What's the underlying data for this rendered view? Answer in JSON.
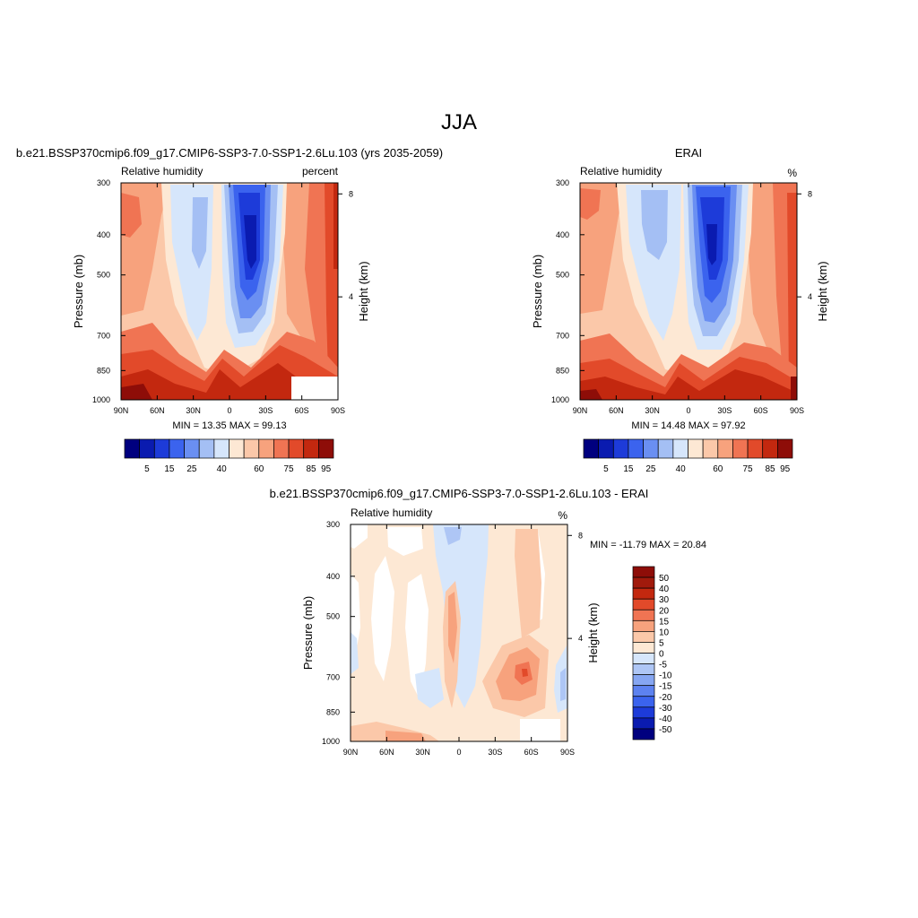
{
  "title": "JJA",
  "chart_data": [
    {
      "type": "heatmap",
      "title": "b.e21.BSSP370cmip6.f09_g17.CMIP6-SSP3-7.0-SSP1-2.6Lu.103 (yrs 2035-2059)",
      "left_label": "Relative humidity",
      "right_label": "percent",
      "ylabel": "Pressure (mb)",
      "y2label": "Height (km)",
      "x_ticks": [
        "90N",
        "60N",
        "30N",
        "0",
        "30S",
        "60S",
        "90S"
      ],
      "y_ticks": [
        "300",
        "400",
        "500",
        "700",
        "850",
        "1000"
      ],
      "y_values": [
        300,
        400,
        500,
        700,
        850,
        1000
      ],
      "y2_ticks": [
        "8",
        "4"
      ],
      "y2_values": [
        8,
        4
      ],
      "ylim": [
        1000,
        300
      ],
      "y_scale": "log",
      "stats": "MIN =  13.35  MAX =  99.13",
      "colorbar_labels": [
        "5",
        "15",
        "25",
        "40",
        "60",
        "75",
        "85",
        "95"
      ]
    },
    {
      "type": "heatmap",
      "title": "ERAI",
      "left_label": "Relative humidity",
      "right_label": "%",
      "ylabel": "Pressure (mb)",
      "y2label": "Height (km)",
      "x_ticks": [
        "90N",
        "60N",
        "30N",
        "0",
        "30S",
        "60S",
        "90S"
      ],
      "y_ticks": [
        "300",
        "400",
        "500",
        "700",
        "850",
        "1000"
      ],
      "y_values": [
        300,
        400,
        500,
        700,
        850,
        1000
      ],
      "y2_ticks": [
        "8",
        "4"
      ],
      "y2_values": [
        8,
        4
      ],
      "ylim": [
        1000,
        300
      ],
      "y_scale": "log",
      "stats": "MIN =  14.48  MAX =  97.92",
      "colorbar_labels": [
        "5",
        "15",
        "25",
        "40",
        "60",
        "75",
        "85",
        "95"
      ]
    },
    {
      "type": "heatmap",
      "title": "b.e21.BSSP370cmip6.f09_g17.CMIP6-SSP3-7.0-SSP1-2.6Lu.103 - ERAI",
      "left_label": "Relative humidity",
      "right_label": "%",
      "ylabel": "Pressure (mb)",
      "y2label": "Height (km)",
      "x_ticks": [
        "90N",
        "60N",
        "30N",
        "0",
        "30S",
        "60S",
        "90S"
      ],
      "y_ticks": [
        "300",
        "400",
        "500",
        "700",
        "850",
        "1000"
      ],
      "y_values": [
        300,
        400,
        500,
        700,
        850,
        1000
      ],
      "y2_ticks": [
        "8",
        "4"
      ],
      "y2_values": [
        8,
        4
      ],
      "ylim": [
        1000,
        300
      ],
      "y_scale": "log",
      "stats": "MIN = -11.79  MAX =  20.84",
      "colorbar_labels": [
        "50",
        "40",
        "30",
        "20",
        "15",
        "10",
        "5",
        "0",
        "-5",
        "-10",
        "-15",
        "-20",
        "-30",
        "-40",
        "-50"
      ]
    }
  ],
  "colors": {
    "abs_scale": [
      "#00007f",
      "#0a1bb0",
      "#1d3bd9",
      "#3b63ee",
      "#6a8ff2",
      "#a4bff4",
      "#d6e6fb",
      "#fde8d4",
      "#fbc8a9",
      "#f7a27d",
      "#f07453",
      "#e24a2a",
      "#c3280f",
      "#8e0d08"
    ],
    "diff_scale": [
      "#00007f",
      "#0a1bb0",
      "#1d3bd9",
      "#3b63ee",
      "#5d82f0",
      "#86a6f2",
      "#aec6f5",
      "#d6e6fb",
      "#fde8d4",
      "#fbc8a9",
      "#f7a27d",
      "#f07453",
      "#e24a2a",
      "#c3280f",
      "#a11a0c",
      "#8e0d08"
    ]
  }
}
